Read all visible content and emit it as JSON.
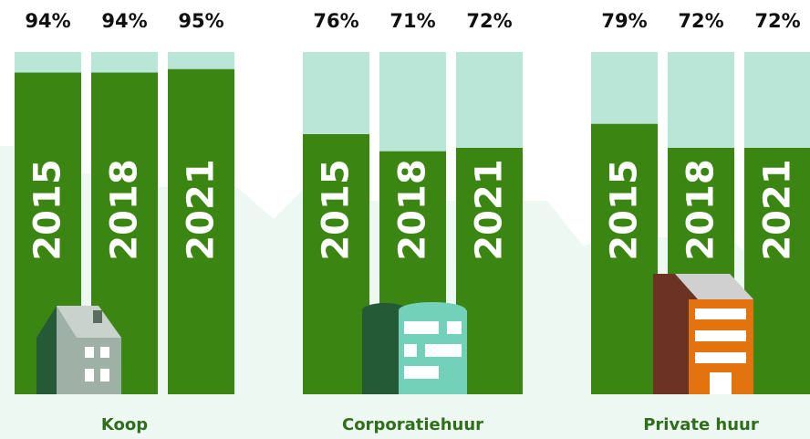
{
  "chart_data": {
    "type": "bar",
    "color": "#3b8613",
    "track_color": "#b9e6d7",
    "ylim": [
      0,
      100
    ],
    "groups": [
      {
        "name": "Koop",
        "categories": [
          "2015",
          "2018",
          "2021"
        ],
        "values": [
          94,
          94,
          95
        ],
        "value_labels": [
          "94%",
          "94%",
          "95%"
        ]
      },
      {
        "name": "Corporatiehuur",
        "categories": [
          "2015",
          "2018",
          "2021"
        ],
        "values": [
          76,
          71,
          72
        ],
        "value_labels": [
          "76%",
          "71%",
          "72%"
        ]
      },
      {
        "name": "Private huur",
        "categories": [
          "2015",
          "2018",
          "2021"
        ],
        "values": [
          79,
          72,
          72
        ],
        "value_labels": [
          "79%",
          "72%",
          "72%"
        ]
      }
    ]
  }
}
